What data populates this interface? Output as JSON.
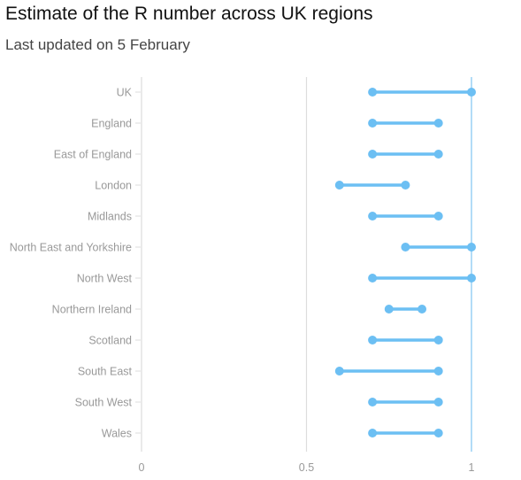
{
  "header": {
    "title": "Estimate of the R number across UK regions",
    "subtitle": "Last updated on 5 February"
  },
  "chart_data": {
    "type": "range-dot",
    "title": "Estimate of the R number across UK regions",
    "subtitle": "Last updated on 5 February",
    "categories": [
      "UK",
      "England",
      "East of England",
      "London",
      "Midlands",
      "North East and Yorkshire",
      "North West",
      "Northern Ireland",
      "Scotland",
      "South East",
      "South West",
      "Wales"
    ],
    "series": [
      {
        "name": "",
        "low": [
          0.7,
          0.7,
          0.7,
          0.6,
          0.7,
          0.8,
          0.7,
          0.75,
          0.7,
          0.6,
          0.7,
          0.7
        ],
        "high": [
          1.0,
          0.9,
          0.9,
          0.8,
          0.9,
          1.0,
          1.0,
          0.85,
          0.9,
          0.9,
          0.9,
          0.9
        ]
      }
    ],
    "xlim": [
      0,
      1.1
    ],
    "x_ticks": [
      0,
      0.5,
      1
    ],
    "x_tick_labels": [
      "0",
      "0.5",
      "1"
    ],
    "reference_line": 1,
    "grid": true,
    "colors": {
      "range": "#6cbff3",
      "reference": "#9fd3f5",
      "grid": "#dddddd",
      "label": "#999999"
    }
  }
}
